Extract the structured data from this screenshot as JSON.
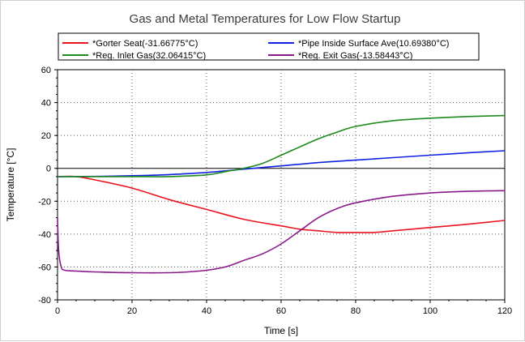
{
  "chart_data": {
    "type": "line",
    "title": "Gas and Metal Temperatures for Low Flow Startup",
    "xlabel": "Time [s]",
    "ylabel": "Temperature [°C]",
    "xlim": [
      0,
      120
    ],
    "ylim": [
      -80,
      60
    ],
    "x_ticks": [
      0,
      20,
      40,
      60,
      80,
      100,
      120
    ],
    "y_ticks": [
      -80,
      -60,
      -40,
      -20,
      0,
      20,
      40,
      60
    ],
    "grid": true,
    "zero_line": true,
    "legend_position": "top",
    "series": [
      {
        "name": "*Gorter Seat(-31.66775°C)",
        "color": "#e8141e",
        "x": [
          0,
          5,
          10,
          20,
          30,
          40,
          50,
          60,
          65,
          70,
          75,
          80,
          85,
          90,
          100,
          110,
          120
        ],
        "y": [
          -5,
          -5,
          -7,
          -12,
          -19,
          -25,
          -31,
          -35,
          -37,
          -38,
          -39,
          -39,
          -39,
          -38,
          -36,
          -34,
          -31.7
        ]
      },
      {
        "name": "*Pipe Inside Surface Ave(10.69380°C)",
        "color": "#1022e0",
        "x": [
          0,
          10,
          20,
          30,
          40,
          50,
          60,
          70,
          80,
          90,
          100,
          110,
          120
        ],
        "y": [
          -5,
          -4.9,
          -4.5,
          -3.8,
          -2.5,
          -0.5,
          1.5,
          3.5,
          5,
          6.5,
          8,
          9.4,
          10.7
        ]
      },
      {
        "name": "*Reg. Inlet Gas(32.06415°C)",
        "color": "#1e8a1e",
        "x": [
          0,
          10,
          20,
          30,
          40,
          45,
          50,
          55,
          60,
          65,
          70,
          75,
          80,
          90,
          100,
          110,
          120
        ],
        "y": [
          -5,
          -5,
          -5,
          -5,
          -4,
          -2,
          0,
          3,
          8,
          13,
          18,
          22,
          25.5,
          29,
          30.5,
          31.5,
          32.1
        ]
      },
      {
        "name": "*Reg. Exit Gas(-13.58443°C)",
        "color": "#8a1a8a",
        "x": [
          0,
          0.3,
          1,
          2,
          5,
          10,
          20,
          30,
          35,
          40,
          45,
          50,
          55,
          60,
          65,
          70,
          75,
          80,
          90,
          100,
          110,
          120
        ],
        "y": [
          -30,
          -50,
          -60,
          -62,
          -62.5,
          -63,
          -63.5,
          -63.5,
          -63,
          -62,
          -60,
          -56,
          -52,
          -46,
          -38,
          -30,
          -24.5,
          -21,
          -17,
          -15,
          -14,
          -13.6
        ]
      }
    ]
  }
}
